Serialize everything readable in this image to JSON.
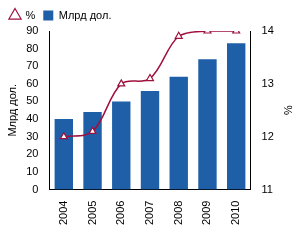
{
  "chart_data": {
    "type": "bar",
    "categories": [
      "2004",
      "2005",
      "2006",
      "2007",
      "2008",
      "2009",
      "2010"
    ],
    "series": [
      {
        "name": "Млрд дол.",
        "type": "bar",
        "color": "#1f5fa8",
        "axis": "y",
        "values": [
          40,
          44,
          50,
          56,
          64,
          74,
          83
        ]
      },
      {
        "name": "%",
        "type": "line",
        "color": "#a0103c",
        "axis": "y2",
        "marker": "triangle",
        "line_style": "solid",
        "values": [
          12.0,
          12.1,
          13.0,
          13.1,
          13.9,
          14.0,
          14.0
        ]
      }
    ],
    "y_label": "Млрд дол.",
    "y2_label": "%",
    "ylim": [
      0,
      90
    ],
    "yticks": [
      0,
      10,
      20,
      30,
      40,
      50,
      60,
      70,
      80,
      90
    ],
    "y2lim": [
      11,
      14
    ],
    "y2ticks": [
      11,
      12,
      13,
      14
    ],
    "grid": false,
    "legend": "top-left"
  }
}
